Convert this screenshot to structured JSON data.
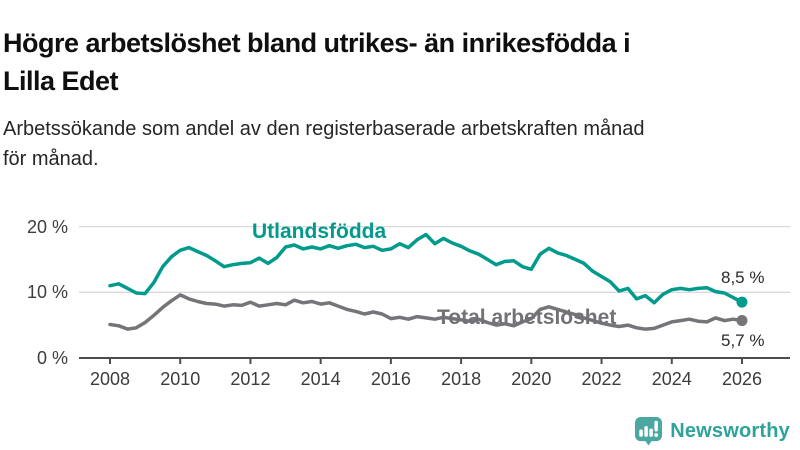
{
  "header": {
    "title_line1": "Högre arbetslöshet bland utrikes- än inrikesfödda i",
    "title_line2": "Lilla Edet",
    "subtitle_line1": "Arbetssökande som andel av den registerbaserade arbetskraften månad",
    "subtitle_line2": "för månad."
  },
  "chart_data": {
    "type": "line",
    "title": "Högre arbetslöshet bland utrikes- än inrikesfödda i Lilla Edet",
    "subtitle": "Arbetssökande som andel av den registerbaserade arbetskraften månad för månad.",
    "xlabel": "",
    "ylabel": "",
    "grid": "horizontal-gridlines-at-10-and-20",
    "legend": "inline-series-labels",
    "xlim": [
      2008,
      2026.35
    ],
    "ylim": [
      0,
      21.5
    ],
    "x_ticks": [
      2008,
      2010,
      2012,
      2014,
      2016,
      2018,
      2020,
      2022,
      2024,
      2026
    ],
    "x_tick_labels": [
      "2008",
      "2010",
      "2012",
      "2014",
      "2016",
      "2018",
      "2020",
      "2022",
      "2024",
      "2026"
    ],
    "y_ticks": [
      0,
      10,
      20
    ],
    "y_tick_labels": [
      "0 %",
      "10 %",
      "20 %"
    ],
    "x": [
      2008,
      2008.25,
      2008.5,
      2008.75,
      2009,
      2009.25,
      2009.5,
      2009.75,
      2010,
      2010.25,
      2010.5,
      2010.75,
      2011,
      2011.25,
      2011.5,
      2011.75,
      2012,
      2012.25,
      2012.5,
      2012.75,
      2013,
      2013.25,
      2013.5,
      2013.75,
      2014,
      2014.25,
      2014.5,
      2014.75,
      2015,
      2015.25,
      2015.5,
      2015.75,
      2016,
      2016.25,
      2016.5,
      2016.75,
      2017,
      2017.25,
      2017.5,
      2017.75,
      2018,
      2018.25,
      2018.5,
      2018.75,
      2019,
      2019.25,
      2019.5,
      2019.75,
      2020,
      2020.25,
      2020.5,
      2020.75,
      2021,
      2021.25,
      2021.5,
      2021.75,
      2022,
      2022.25,
      2022.5,
      2022.75,
      2023,
      2023.25,
      2023.5,
      2023.75,
      2024,
      2024.25,
      2024.5,
      2024.75,
      2025,
      2025.25,
      2025.5,
      2025.75,
      2026
    ],
    "series": [
      {
        "name": "Utlandsfödda",
        "color": "#009b8c",
        "end_label": "8,5 %",
        "end_value": 8.5,
        "values": [
          11.0,
          11.3,
          10.6,
          9.9,
          9.8,
          11.5,
          13.9,
          15.4,
          16.4,
          16.8,
          16.2,
          15.6,
          14.8,
          13.9,
          14.2,
          14.4,
          14.5,
          15.2,
          14.4,
          15.3,
          16.9,
          17.2,
          16.6,
          16.9,
          16.6,
          17.1,
          16.7,
          17.1,
          17.3,
          16.8,
          17.0,
          16.4,
          16.6,
          17.4,
          16.8,
          18.0,
          18.8,
          17.4,
          18.2,
          17.5,
          17.0,
          16.3,
          15.8,
          15.0,
          14.2,
          14.7,
          14.8,
          13.9,
          13.5,
          15.8,
          16.7,
          16.0,
          15.6,
          15.0,
          14.4,
          13.2,
          12.4,
          11.6,
          10.2,
          10.6,
          9.0,
          9.5,
          8.4,
          9.7,
          10.4,
          10.6,
          10.4,
          10.6,
          10.7,
          10.1,
          9.9,
          9.2,
          8.5
        ]
      },
      {
        "name": "Total arbetslöshet",
        "color": "#757579",
        "end_label": "5,7 %",
        "end_value": 5.7,
        "values": [
          5.1,
          4.9,
          4.4,
          4.6,
          5.4,
          6.5,
          7.7,
          8.7,
          9.6,
          9.0,
          8.6,
          8.3,
          8.2,
          7.9,
          8.1,
          8.0,
          8.5,
          7.9,
          8.1,
          8.3,
          8.1,
          8.8,
          8.4,
          8.6,
          8.2,
          8.4,
          7.9,
          7.4,
          7.1,
          6.7,
          7.0,
          6.7,
          6.0,
          6.2,
          5.9,
          6.3,
          6.1,
          5.9,
          6.2,
          6.0,
          5.8,
          5.6,
          5.9,
          5.4,
          5.0,
          5.2,
          4.9,
          5.5,
          6.0,
          7.4,
          7.8,
          7.4,
          7.0,
          6.6,
          6.1,
          5.7,
          5.3,
          5.0,
          4.8,
          5.0,
          4.6,
          4.4,
          4.5,
          5.0,
          5.5,
          5.7,
          5.9,
          5.6,
          5.5,
          6.1,
          5.7,
          5.9,
          5.7
        ]
      }
    ]
  },
  "style": {
    "grid_color": "#d9d9d9",
    "axis_color": "#4d4d4d",
    "tick_label_color": "#3c3c3c"
  },
  "branding": {
    "logo_text": "Newsworthy",
    "logo_icon": "newsworthy-barchart-exclamation-icon",
    "logo_text_color": "#2ea39a",
    "logo_icon_color": "#4aa7a1"
  }
}
